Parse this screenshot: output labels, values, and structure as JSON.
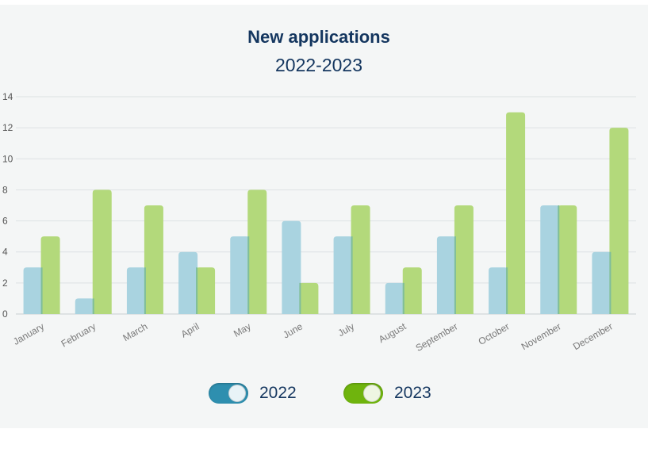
{
  "chart_data": {
    "type": "bar",
    "title": "New applications",
    "subtitle": "2022-2023",
    "categories": [
      "January",
      "February",
      "March",
      "April",
      "May",
      "June",
      "July",
      "August",
      "September",
      "October",
      "November",
      "December"
    ],
    "series": [
      {
        "name": "2022",
        "values": [
          3,
          1,
          3,
          4,
          5,
          6,
          5,
          2,
          5,
          3,
          7,
          4
        ],
        "color": "#a9d3e0",
        "toggle_color": "#2e8faf"
      },
      {
        "name": "2023",
        "values": [
          5,
          8,
          7,
          3,
          8,
          2,
          7,
          3,
          7,
          13,
          7,
          12
        ],
        "color": "#b3d97b",
        "toggle_color": "#6fb40d"
      }
    ],
    "overlap_color": "#7fbd9b",
    "ylim": [
      0,
      14
    ],
    "yticks": [
      0,
      2,
      4,
      6,
      8,
      10,
      12,
      14
    ],
    "grid": true,
    "legend_position": "bottom",
    "xlabel": "",
    "ylabel": ""
  }
}
